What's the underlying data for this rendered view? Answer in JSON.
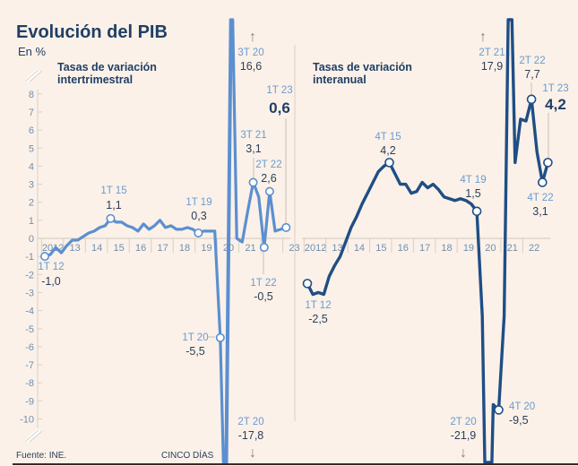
{
  "chart_data": {
    "type": "line",
    "title": "Evolución del PIB",
    "unit_label": "En %",
    "source": "Fuente: INE.",
    "brand": "CINCO DÍAS",
    "ylim": [
      -10,
      8
    ],
    "yticks": [
      8,
      7,
      6,
      5,
      4,
      3,
      2,
      1,
      0,
      -1,
      -2,
      -3,
      -4,
      -5,
      -6,
      -7,
      -8,
      -9,
      -10
    ],
    "charts": [
      {
        "name": "intertrimestral",
        "subtitle_1": "Tasas de variación",
        "subtitle_2": "intertrimestral",
        "color": "#5b8fd0",
        "xticks": [
          "2012",
          "13",
          "14",
          "15",
          "16",
          "17",
          "18",
          "19",
          "20",
          "21",
          "",
          "23"
        ],
        "values": [
          -1.0,
          -0.9,
          -0.5,
          -0.8,
          -0.4,
          -0.1,
          -0.1,
          0.1,
          0.3,
          0.4,
          0.6,
          0.7,
          1.1,
          0.9,
          0.9,
          0.7,
          0.6,
          0.4,
          0.8,
          0.5,
          0.7,
          1.0,
          0.6,
          0.7,
          0.5,
          0.5,
          0.6,
          0.5,
          0.3,
          0.4,
          0.4,
          0.4,
          -5.5,
          -17.8,
          16.6,
          0.0,
          -0.2,
          1.5,
          3.1,
          2.3,
          -0.5,
          2.6,
          0.4,
          0.5,
          0.6
        ],
        "annotations": [
          {
            "quarter": "1T 12",
            "value": "-1,0",
            "index": 0
          },
          {
            "quarter": "1T 15",
            "value": "1,1",
            "index": 12
          },
          {
            "quarter": "1T 19",
            "value": "0,3",
            "index": 28
          },
          {
            "quarter": "1T 20",
            "value": "-5,5",
            "index": 32
          },
          {
            "quarter": "2T 20",
            "value": "-17,8",
            "index": 33
          },
          {
            "quarter": "3T 20",
            "value": "16,6",
            "index": 34
          },
          {
            "quarter": "3T 21",
            "value": "3,1",
            "index": 38
          },
          {
            "quarter": "1T 22",
            "value": "-0,5",
            "index": 40
          },
          {
            "quarter": "2T 22",
            "value": "2,6",
            "index": 41
          },
          {
            "quarter": "1T 23",
            "value": "0,6",
            "index": 44
          }
        ]
      },
      {
        "name": "interanual",
        "subtitle_1": "Tasas de variación",
        "subtitle_2": "interanual",
        "color": "#1f4e85",
        "xticks": [
          "2012",
          "13",
          "14",
          "15",
          "16",
          "17",
          "18",
          "19",
          "20",
          "21",
          "22"
        ],
        "values": [
          -2.5,
          -3.1,
          -3.0,
          -3.1,
          -2.1,
          -1.5,
          -1.0,
          -0.2,
          0.6,
          1.2,
          1.9,
          2.5,
          3.1,
          3.7,
          4.0,
          4.2,
          3.6,
          3.0,
          3.0,
          2.5,
          2.6,
          3.1,
          2.8,
          3.0,
          2.7,
          2.3,
          2.2,
          2.1,
          2.2,
          2.1,
          1.9,
          1.5,
          -4.3,
          -21.9,
          -9.2,
          -9.5,
          -4.3,
          17.9,
          4.2,
          6.6,
          6.5,
          7.7,
          4.8,
          3.1,
          4.2
        ],
        "annotations": [
          {
            "quarter": "1T 12",
            "value": "-2,5",
            "index": 0
          },
          {
            "quarter": "4T 15",
            "value": "4,2",
            "index": 15
          },
          {
            "quarter": "4T 19",
            "value": "1,5",
            "index": 31
          },
          {
            "quarter": "2T 20",
            "value": "-21,9",
            "index": 33
          },
          {
            "quarter": "4T 20",
            "value": "-9,5",
            "index": 35
          },
          {
            "quarter": "2T 21",
            "value": "17,9",
            "index": 37
          },
          {
            "quarter": "2T 22",
            "value": "7,7",
            "index": 41
          },
          {
            "quarter": "4T 22",
            "value": "3,1",
            "index": 43
          },
          {
            "quarter": "1T 23",
            "value": "4,2",
            "index": 44
          }
        ]
      }
    ]
  }
}
